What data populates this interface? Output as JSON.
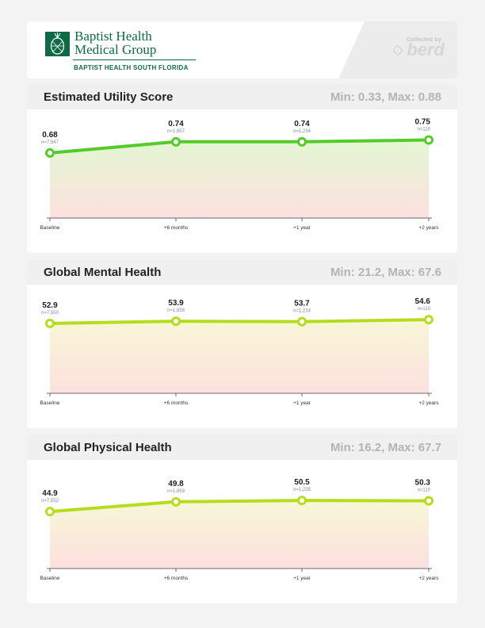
{
  "header": {
    "logo_title_line1": "Baptist Health",
    "logo_title_line2": "Medical Group",
    "logo_subtitle": "BAPTIST HEALTH SOUTH FLORIDA",
    "collected_by": "Collected by",
    "berd_brand": "berd",
    "logo_icon": "pineapple-icon",
    "brand_color": "#0e6b45"
  },
  "colors": {
    "line_green": "#53cc2a",
    "line_lime": "#b5dd1e",
    "gradient_top_green": "#e3f7d2",
    "gradient_top_yellow": "#f7f7d6",
    "gradient_bottom": "#fde0df"
  },
  "chart_data": [
    {
      "type": "line",
      "title": "Estimated Utility Score",
      "range_label": "Min: 0.33, Max: 0.88",
      "categories": [
        "Baseline",
        "+6 months",
        "+1 year",
        "+2 years"
      ],
      "values": [
        0.68,
        0.74,
        0.74,
        0.75
      ],
      "value_labels": [
        "0.68",
        "0.74",
        "0.74",
        "0.75"
      ],
      "n_labels": [
        "n=7,547",
        "n=1,857",
        "n=1,234",
        "n=110"
      ],
      "ylim": [
        0.33,
        0.88
      ],
      "line_color": "#53cc2a",
      "fill_top": "#e3f7d2",
      "fill_bottom": "#fde0df"
    },
    {
      "type": "line",
      "title": "Global Mental Health",
      "range_label": "Min: 21.2, Max: 67.6",
      "categories": [
        "Baseline",
        "+6 months",
        "+1 year",
        "+2 years"
      ],
      "values": [
        52.9,
        53.9,
        53.7,
        54.6
      ],
      "value_labels": [
        "52.9",
        "53.9",
        "53.7",
        "54.6"
      ],
      "n_labels": [
        "n=7,550",
        "n=1,858",
        "n=1,234",
        "n=110"
      ],
      "ylim": [
        21.2,
        67.6
      ],
      "line_color": "#b5dd1e",
      "fill_top": "#f7f7d6",
      "fill_bottom": "#fde0df"
    },
    {
      "type": "line",
      "title": "Global Physical Health",
      "range_label": "Min: 16.2, Max: 67.7",
      "categories": [
        "Baseline",
        "+6 months",
        "+1 year",
        "+2 years"
      ],
      "values": [
        44.9,
        49.8,
        50.5,
        50.3
      ],
      "value_labels": [
        "44.9",
        "49.8",
        "50.5",
        "50.3"
      ],
      "n_labels": [
        "n=7,552",
        "n=1,859",
        "n=1,235",
        "n=110"
      ],
      "ylim": [
        16.2,
        67.7
      ],
      "line_color": "#b5dd1e",
      "fill_top": "#f7f7d6",
      "fill_bottom": "#fde0df"
    }
  ]
}
